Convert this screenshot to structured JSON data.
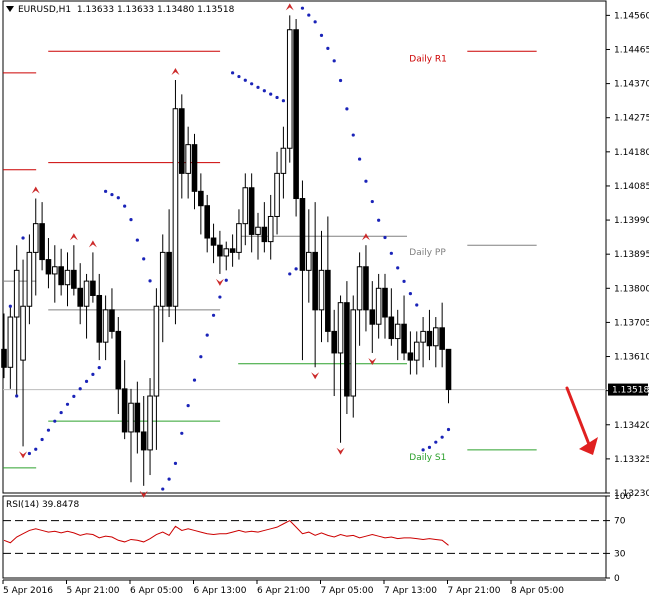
{
  "header": {
    "symbol_timeframe": "EURUSD,H1",
    "ohlc": "1.13633 1.13633 1.13480 1.13518"
  },
  "chart_data": [
    {
      "type": "candlestick",
      "instrument": "EURUSD",
      "timeframe": "H1",
      "ylim": [
        1.1323,
        1.146
      ],
      "price_ticks": [
        "1.14560",
        "1.14465",
        "1.14370",
        "1.14275",
        "1.14180",
        "1.14085",
        "1.13990",
        "1.13895",
        "1.13800",
        "1.13705",
        "1.13610",
        "1.13515",
        "1.13420",
        "1.13325",
        "1.13230"
      ],
      "current_price": "1.13518",
      "time_ticks": [
        "5 Apr 2016",
        "5 Apr 21:00",
        "6 Apr 05:00",
        "6 Apr 13:00",
        "6 Apr 21:00",
        "7 Apr 05:00",
        "7 Apr 13:00",
        "7 Apr 21:00",
        "8 Apr 05:00"
      ],
      "candles": [
        {
          "o": 1.1363,
          "h": 1.1373,
          "l": 1.1355,
          "c": 1.1358
        },
        {
          "o": 1.1358,
          "h": 1.1375,
          "l": 1.1352,
          "c": 1.1372
        },
        {
          "o": 1.1372,
          "h": 1.1392,
          "l": 1.135,
          "c": 1.1385
        },
        {
          "o": 1.136,
          "h": 1.1388,
          "l": 1.1336,
          "c": 1.1375
        },
        {
          "o": 1.1375,
          "h": 1.1395,
          "l": 1.137,
          "c": 1.139
        },
        {
          "o": 1.139,
          "h": 1.1405,
          "l": 1.1378,
          "c": 1.1398
        },
        {
          "o": 1.1398,
          "h": 1.1404,
          "l": 1.1385,
          "c": 1.1388
        },
        {
          "o": 1.1388,
          "h": 1.1394,
          "l": 1.138,
          "c": 1.1384
        },
        {
          "o": 1.1384,
          "h": 1.1392,
          "l": 1.1376,
          "c": 1.1386
        },
        {
          "o": 1.1386,
          "h": 1.1391,
          "l": 1.1378,
          "c": 1.1381
        },
        {
          "o": 1.1381,
          "h": 1.139,
          "l": 1.1375,
          "c": 1.1385
        },
        {
          "o": 1.1385,
          "h": 1.1392,
          "l": 1.1378,
          "c": 1.138
        },
        {
          "o": 1.138,
          "h": 1.1387,
          "l": 1.137,
          "c": 1.1375
        },
        {
          "o": 1.1375,
          "h": 1.1384,
          "l": 1.1366,
          "c": 1.1382
        },
        {
          "o": 1.1382,
          "h": 1.139,
          "l": 1.1376,
          "c": 1.1378
        },
        {
          "o": 1.1378,
          "h": 1.1384,
          "l": 1.136,
          "c": 1.1365
        },
        {
          "o": 1.1365,
          "h": 1.1378,
          "l": 1.136,
          "c": 1.1374
        },
        {
          "o": 1.1374,
          "h": 1.138,
          "l": 1.1366,
          "c": 1.1368
        },
        {
          "o": 1.1368,
          "h": 1.1372,
          "l": 1.1345,
          "c": 1.1352
        },
        {
          "o": 1.1352,
          "h": 1.136,
          "l": 1.1338,
          "c": 1.134
        },
        {
          "o": 1.134,
          "h": 1.1352,
          "l": 1.1326,
          "c": 1.1348
        },
        {
          "o": 1.1348,
          "h": 1.1354,
          "l": 1.1334,
          "c": 1.134
        },
        {
          "o": 1.134,
          "h": 1.135,
          "l": 1.1325,
          "c": 1.1335
        },
        {
          "o": 1.1335,
          "h": 1.1355,
          "l": 1.1328,
          "c": 1.135
        },
        {
          "o": 1.135,
          "h": 1.138,
          "l": 1.1335,
          "c": 1.1375
        },
        {
          "o": 1.1375,
          "h": 1.1395,
          "l": 1.1365,
          "c": 1.139
        },
        {
          "o": 1.139,
          "h": 1.1402,
          "l": 1.1372,
          "c": 1.1375
        },
        {
          "o": 1.1375,
          "h": 1.1438,
          "l": 1.137,
          "c": 1.143
        },
        {
          "o": 1.143,
          "h": 1.1434,
          "l": 1.1405,
          "c": 1.1412
        },
        {
          "o": 1.1412,
          "h": 1.1425,
          "l": 1.1405,
          "c": 1.142
        },
        {
          "o": 1.142,
          "h": 1.1423,
          "l": 1.1402,
          "c": 1.1407
        },
        {
          "o": 1.1407,
          "h": 1.1412,
          "l": 1.1395,
          "c": 1.1403
        },
        {
          "o": 1.1403,
          "h": 1.1406,
          "l": 1.139,
          "c": 1.1394
        },
        {
          "o": 1.1394,
          "h": 1.1398,
          "l": 1.1387,
          "c": 1.1392
        },
        {
          "o": 1.1392,
          "h": 1.1396,
          "l": 1.1384,
          "c": 1.1389
        },
        {
          "o": 1.1389,
          "h": 1.1393,
          "l": 1.1385,
          "c": 1.1391
        },
        {
          "o": 1.1391,
          "h": 1.1395,
          "l": 1.1386,
          "c": 1.139
        },
        {
          "o": 1.139,
          "h": 1.1402,
          "l": 1.1388,
          "c": 1.1398
        },
        {
          "o": 1.1398,
          "h": 1.1412,
          "l": 1.1392,
          "c": 1.1408
        },
        {
          "o": 1.1408,
          "h": 1.1412,
          "l": 1.139,
          "c": 1.1395
        },
        {
          "o": 1.1395,
          "h": 1.1401,
          "l": 1.1388,
          "c": 1.1397
        },
        {
          "o": 1.1397,
          "h": 1.1404,
          "l": 1.139,
          "c": 1.1393
        },
        {
          "o": 1.1393,
          "h": 1.1406,
          "l": 1.1388,
          "c": 1.14
        },
        {
          "o": 1.14,
          "h": 1.1418,
          "l": 1.1395,
          "c": 1.1412
        },
        {
          "o": 1.1412,
          "h": 1.1425,
          "l": 1.1405,
          "c": 1.1419
        },
        {
          "o": 1.1419,
          "h": 1.1456,
          "l": 1.1415,
          "c": 1.1452
        },
        {
          "o": 1.1452,
          "h": 1.1455,
          "l": 1.14,
          "c": 1.1405
        },
        {
          "o": 1.1405,
          "h": 1.141,
          "l": 1.136,
          "c": 1.1385
        },
        {
          "o": 1.1385,
          "h": 1.1402,
          "l": 1.1376,
          "c": 1.139
        },
        {
          "o": 1.139,
          "h": 1.1404,
          "l": 1.1358,
          "c": 1.1374
        },
        {
          "o": 1.1374,
          "h": 1.1396,
          "l": 1.1365,
          "c": 1.1385
        },
        {
          "o": 1.1385,
          "h": 1.14,
          "l": 1.1365,
          "c": 1.1368
        },
        {
          "o": 1.1368,
          "h": 1.1374,
          "l": 1.135,
          "c": 1.1362
        },
        {
          "o": 1.1362,
          "h": 1.1378,
          "l": 1.1337,
          "c": 1.1376
        },
        {
          "o": 1.1376,
          "h": 1.1382,
          "l": 1.1345,
          "c": 1.135
        },
        {
          "o": 1.135,
          "h": 1.1378,
          "l": 1.1344,
          "c": 1.1374
        },
        {
          "o": 1.1374,
          "h": 1.139,
          "l": 1.1364,
          "c": 1.1386
        },
        {
          "o": 1.1386,
          "h": 1.1392,
          "l": 1.1368,
          "c": 1.1374
        },
        {
          "o": 1.1374,
          "h": 1.1382,
          "l": 1.1362,
          "c": 1.137
        },
        {
          "o": 1.137,
          "h": 1.1384,
          "l": 1.1366,
          "c": 1.138
        },
        {
          "o": 1.138,
          "h": 1.1384,
          "l": 1.1366,
          "c": 1.1372
        },
        {
          "o": 1.1372,
          "h": 1.138,
          "l": 1.1364,
          "c": 1.1366
        },
        {
          "o": 1.1366,
          "h": 1.1374,
          "l": 1.136,
          "c": 1.137
        },
        {
          "o": 1.137,
          "h": 1.1378,
          "l": 1.136,
          "c": 1.1362
        },
        {
          "o": 1.1362,
          "h": 1.1368,
          "l": 1.1356,
          "c": 1.136
        },
        {
          "o": 1.136,
          "h": 1.1368,
          "l": 1.1356,
          "c": 1.1365
        },
        {
          "o": 1.1365,
          "h": 1.1372,
          "l": 1.1358,
          "c": 1.1368
        },
        {
          "o": 1.1368,
          "h": 1.1374,
          "l": 1.136,
          "c": 1.1364
        },
        {
          "o": 1.1364,
          "h": 1.1372,
          "l": 1.1358,
          "c": 1.1369
        },
        {
          "o": 1.1369,
          "h": 1.1376,
          "l": 1.1358,
          "c": 1.1363
        },
        {
          "o": 1.1363,
          "h": 1.1363,
          "l": 1.1348,
          "c": 1.13518
        }
      ],
      "levels": [
        {
          "name": "Daily R1",
          "label": "Daily R1",
          "price": 1.1446,
          "color": "#cc0000",
          "segments": [
            [
              0.77,
              0.885
            ]
          ],
          "show_label": true
        },
        {
          "name": "R1 prev",
          "label": "",
          "price": 1.1446,
          "color": "#cc0000",
          "segments": [
            [
              0.075,
              0.36
            ]
          ],
          "show_label": false
        },
        {
          "name": "R2 left",
          "label": "",
          "price": 1.144,
          "color": "#cc0000",
          "segments": [
            [
              0.0,
              0.055
            ]
          ],
          "show_label": false
        },
        {
          "name": "R1 mid",
          "label": "",
          "price": 1.1415,
          "color": "#cc0000",
          "segments": [
            [
              0.075,
              0.36
            ]
          ],
          "show_label": false
        },
        {
          "name": "R left2",
          "label": "",
          "price": 1.1413,
          "color": "#cc0000",
          "segments": [
            [
              0.0,
              0.055
            ]
          ],
          "show_label": false
        },
        {
          "name": "Daily PP",
          "label": "Daily PP",
          "price": 1.1392,
          "color": "#808080",
          "segments": [
            [
              0.77,
              0.885
            ]
          ],
          "show_label": true
        },
        {
          "name": "PP prev",
          "label": "",
          "price": 1.13945,
          "color": "#808080",
          "segments": [
            [
              0.39,
              0.67
            ]
          ],
          "show_label": false
        },
        {
          "name": "PP prev2",
          "label": "",
          "price": 1.1374,
          "color": "#808080",
          "segments": [
            [
              0.075,
              0.36
            ]
          ],
          "show_label": false
        },
        {
          "name": "PP left",
          "label": "",
          "price": 1.1382,
          "color": "#808080",
          "segments": [
            [
              0.0,
              0.055
            ]
          ],
          "show_label": false
        },
        {
          "name": "Daily S1",
          "label": "Daily S1",
          "price": 1.1335,
          "color": "#2ca02c",
          "segments": [
            [
              0.77,
              0.885
            ]
          ],
          "show_label": true
        },
        {
          "name": "S1 prev",
          "label": "",
          "price": 1.1359,
          "color": "#2ca02c",
          "segments": [
            [
              0.39,
              0.67
            ]
          ],
          "show_label": false
        },
        {
          "name": "S1 prev2",
          "label": "",
          "price": 1.1343,
          "color": "#2ca02c",
          "segments": [
            [
              0.075,
              0.36
            ]
          ],
          "show_label": false
        },
        {
          "name": "S1 left",
          "label": "",
          "price": 1.133,
          "color": "#2ca02c",
          "segments": [
            [
              0.0,
              0.055
            ]
          ],
          "show_label": false
        }
      ],
      "sar_colors": {
        "dot": "#1a23b8",
        "fractal": "#cc2a2a"
      }
    },
    {
      "type": "line",
      "indicator_label": "RSI(14) 39.8478",
      "ylim": [
        0,
        100
      ],
      "y_ticks": [
        "100",
        "70",
        "30",
        "0"
      ],
      "levels": [
        70,
        30
      ],
      "series": [
        {
          "color": "#cc0000",
          "values": [
            46,
            43,
            50,
            54,
            58,
            60,
            58,
            56,
            57,
            55,
            57,
            55,
            52,
            54,
            53,
            49,
            51,
            50,
            46,
            44,
            47,
            46,
            44,
            48,
            53,
            56,
            52,
            63,
            58,
            60,
            58,
            56,
            54,
            53,
            54,
            54,
            56,
            58,
            56,
            57,
            56,
            58,
            60,
            62,
            66,
            70,
            62,
            54,
            56,
            52,
            55,
            52,
            50,
            53,
            51,
            52,
            49,
            51,
            53,
            51,
            49,
            50,
            48,
            49,
            49,
            48,
            47,
            48,
            47,
            46,
            39.85
          ]
        }
      ]
    }
  ],
  "annotation": {
    "type": "arrow",
    "direction": "down-right",
    "color": "#e02020"
  }
}
